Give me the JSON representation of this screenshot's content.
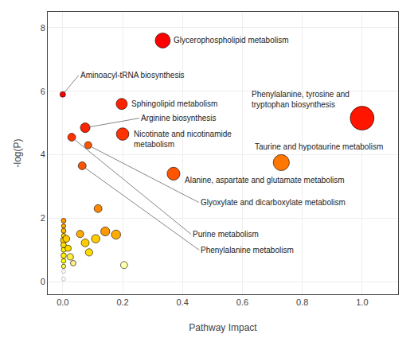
{
  "chart_data": {
    "type": "scatter",
    "xlabel": "Pathway Impact",
    "ylabel": "-log(P)",
    "x": [
      0.334,
      0.0,
      0.197,
      1.0,
      0.075,
      0.03,
      0.2,
      0.085,
      0.065,
      0.73,
      0.37,
      0.118,
      0.003,
      0.003,
      0.003,
      0.003,
      0.003,
      0.003,
      0.003,
      0.003,
      0.003,
      0.003,
      0.003,
      0.003,
      0.012,
      0.018,
      0.025,
      0.035,
      0.058,
      0.075,
      0.088,
      0.11,
      0.142,
      0.178,
      0.205
    ],
    "values": [
      7.6,
      5.9,
      5.6,
      5.15,
      4.85,
      4.55,
      4.65,
      4.3,
      3.65,
      3.75,
      3.4,
      2.3,
      1.92,
      1.75,
      1.6,
      1.45,
      1.3,
      1.15,
      1.0,
      0.82,
      0.65,
      0.48,
      0.32,
      0.08,
      1.35,
      1.05,
      0.78,
      0.58,
      1.5,
      1.22,
      0.92,
      1.35,
      1.58,
      1.48,
      0.52
    ],
    "sizes": [
      220,
      30,
      120,
      550,
      90,
      60,
      150,
      50,
      60,
      250,
      160,
      60,
      22,
      18,
      22,
      18,
      38,
      30,
      22,
      28,
      20,
      18,
      14,
      14,
      45,
      38,
      40,
      30,
      52,
      60,
      52,
      68,
      78,
      82,
      48
    ],
    "colors": [
      "#FF0000",
      "#FF0000",
      "#FF2200",
      "#FF1500",
      "#FF2200",
      "#FF3300",
      "#FF3300",
      "#FF5500",
      "#FF5500",
      "#FF7700",
      "#FF5500",
      "#FF8800",
      "#FF9900",
      "#FFAA00",
      "#FFBB00",
      "#FFCC00",
      "#FFCC00",
      "#FFDD00",
      "#FFEE00",
      "#FFEE00",
      "#FFFF00",
      "#FFFF55",
      "#FFFFFF",
      "#FFFFFF",
      "#FFCC00",
      "#FFDD00",
      "#FFEE44",
      "#FFEE88",
      "#FFAA00",
      "#FFCC00",
      "#FFDD00",
      "#FFCC00",
      "#FF9900",
      "#FFAA00",
      "#FFFFAA"
    ],
    "labels": [
      "Glycerophospholipid metabolism",
      "Aminoacyl-tRNA biosynthesis",
      "Sphingolipid metabolism",
      "Phenylalanine, tyrosine and\ntryptophan biosynthesis",
      "Arginine biosynthesis",
      "Purine metabolism",
      "Nicotinate and nicotinamide\nmetabolism",
      "Glyoxylate and dicarboxylate metabolism",
      "Phenylalanine metabolism",
      "Taurine and hypotaurine metabolism",
      "Alanine, aspartate and glutamate metabolism",
      null,
      null,
      null,
      null,
      null,
      null,
      null,
      null,
      null,
      null,
      null,
      null,
      null,
      null,
      null,
      null,
      null,
      null,
      null,
      null,
      null,
      null,
      null,
      null
    ],
    "xlim": [
      -0.05,
      1.12
    ],
    "ylim": [
      -0.4,
      8.5
    ],
    "xticks": [
      {
        "value": 0,
        "label": "0.0"
      },
      0.2,
      0.4,
      0.6,
      0.8,
      {
        "value": 1,
        "label": "1.0"
      }
    ],
    "yticks": [
      0,
      2,
      4,
      6,
      8
    ],
    "grid": true
  }
}
